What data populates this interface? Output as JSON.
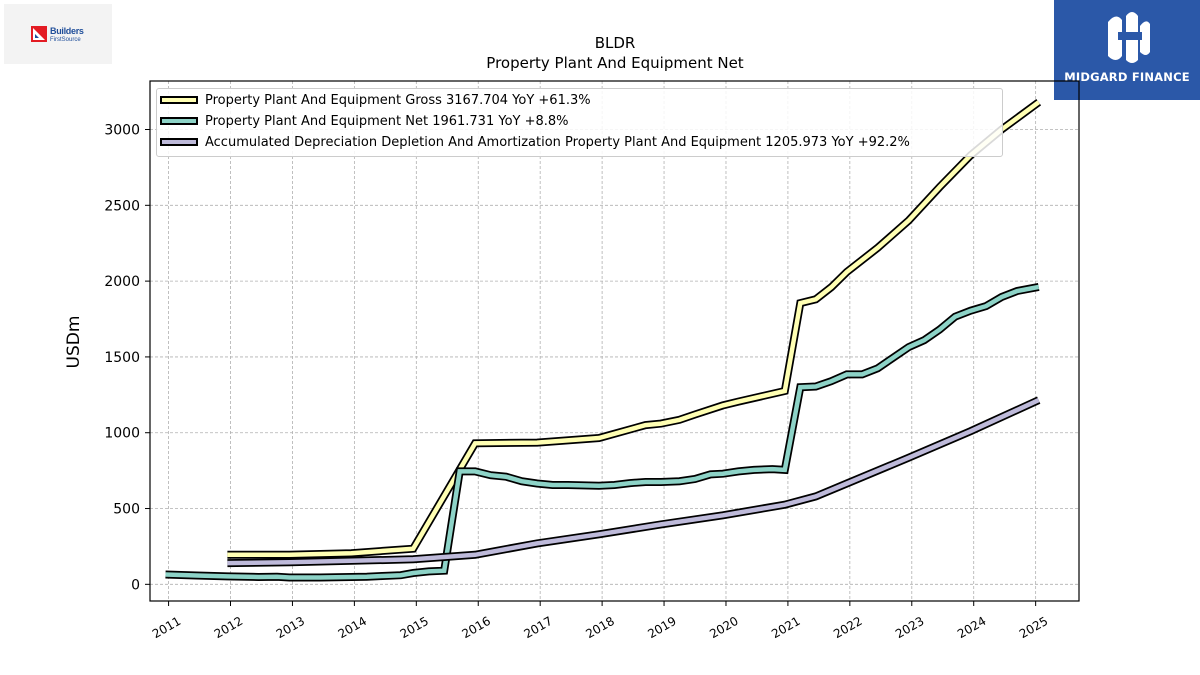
{
  "branding": {
    "left_logo_line1": "Builders",
    "left_logo_line2": "FirstSource",
    "right_logo_name": "MIDGARD FINANCE"
  },
  "chart_data": {
    "type": "line",
    "title": "BLDR",
    "subtitle": "Property Plant And Equipment Net",
    "ylabel": "USDm",
    "xlabel": "",
    "xlim": [
      2010.7,
      2025.7
    ],
    "ylim": [
      -110,
      3320
    ],
    "x_ticks": [
      "2011",
      "2012",
      "2013",
      "2014",
      "2015",
      "2016",
      "2017",
      "2018",
      "2019",
      "2020",
      "2021",
      "2022",
      "2023",
      "2024",
      "2025"
    ],
    "y_ticks": [
      0,
      500,
      1000,
      1500,
      2000,
      2500,
      3000
    ],
    "grid": true,
    "legend_position": "top-left",
    "series": [
      {
        "name": "Property Plant And Equipment Gross",
        "legend_label": "Property Plant And Equipment Gross  3167.704 YoY +61.3%",
        "color": "#ffffb3",
        "points": [
          [
            2011.95,
            195
          ],
          [
            2012.95,
            195
          ],
          [
            2013.95,
            205
          ],
          [
            2014.95,
            235
          ],
          [
            2015.95,
            930
          ],
          [
            2016.95,
            935
          ],
          [
            2017.95,
            965
          ],
          [
            2018.7,
            1050
          ],
          [
            2018.95,
            1060
          ],
          [
            2019.25,
            1085
          ],
          [
            2019.5,
            1120
          ],
          [
            2019.95,
            1180
          ],
          [
            2020.2,
            1205
          ],
          [
            2020.95,
            1275
          ],
          [
            2021.2,
            1855
          ],
          [
            2021.45,
            1880
          ],
          [
            2021.7,
            1960
          ],
          [
            2021.95,
            2060
          ],
          [
            2022.45,
            2220
          ],
          [
            2022.95,
            2400
          ],
          [
            2023.45,
            2620
          ],
          [
            2023.95,
            2830
          ],
          [
            2024.45,
            3000
          ],
          [
            2025.05,
            3180
          ]
        ]
      },
      {
        "name": "Property Plant And Equipment Net",
        "legend_label": "Property Plant And Equipment Net  1961.731 YoY +8.8%",
        "color": "#8dd3c7",
        "points": [
          [
            2010.95,
            65
          ],
          [
            2011.45,
            58
          ],
          [
            2011.95,
            52
          ],
          [
            2012.45,
            48
          ],
          [
            2012.75,
            50
          ],
          [
            2012.95,
            45
          ],
          [
            2013.45,
            45
          ],
          [
            2013.95,
            48
          ],
          [
            2014.2,
            50
          ],
          [
            2014.45,
            55
          ],
          [
            2014.75,
            60
          ],
          [
            2014.95,
            75
          ],
          [
            2015.2,
            85
          ],
          [
            2015.45,
            90
          ],
          [
            2015.7,
            745
          ],
          [
            2015.95,
            745
          ],
          [
            2016.2,
            720
          ],
          [
            2016.45,
            710
          ],
          [
            2016.7,
            680
          ],
          [
            2016.95,
            665
          ],
          [
            2017.2,
            655
          ],
          [
            2017.45,
            655
          ],
          [
            2017.95,
            650
          ],
          [
            2018.2,
            655
          ],
          [
            2018.45,
            668
          ],
          [
            2018.7,
            675
          ],
          [
            2018.95,
            675
          ],
          [
            2019.25,
            680
          ],
          [
            2019.5,
            695
          ],
          [
            2019.75,
            725
          ],
          [
            2019.95,
            730
          ],
          [
            2020.2,
            745
          ],
          [
            2020.45,
            755
          ],
          [
            2020.75,
            760
          ],
          [
            2020.95,
            755
          ],
          [
            2021.2,
            1300
          ],
          [
            2021.45,
            1305
          ],
          [
            2021.7,
            1340
          ],
          [
            2021.95,
            1385
          ],
          [
            2022.2,
            1385
          ],
          [
            2022.45,
            1425
          ],
          [
            2022.7,
            1495
          ],
          [
            2022.95,
            1565
          ],
          [
            2023.2,
            1610
          ],
          [
            2023.45,
            1680
          ],
          [
            2023.7,
            1765
          ],
          [
            2023.95,
            1805
          ],
          [
            2024.2,
            1835
          ],
          [
            2024.45,
            1895
          ],
          [
            2024.7,
            1935
          ],
          [
            2025.05,
            1962
          ]
        ]
      },
      {
        "name": "Accumulated Depreciation Depletion And Amortization Property Plant And Equipment",
        "legend_label": "Accumulated Depreciation Depletion And Amortization Property Plant And Equipment  1205.973 YoY +92.2%",
        "color": "#bebada",
        "points": [
          [
            2011.95,
            140
          ],
          [
            2012.95,
            145
          ],
          [
            2013.95,
            155
          ],
          [
            2014.95,
            165
          ],
          [
            2015.95,
            195
          ],
          [
            2016.95,
            270
          ],
          [
            2017.95,
            330
          ],
          [
            2018.95,
            395
          ],
          [
            2019.95,
            455
          ],
          [
            2020.95,
            525
          ],
          [
            2021.45,
            580
          ],
          [
            2021.95,
            665
          ],
          [
            2022.95,
            835
          ],
          [
            2023.95,
            1010
          ],
          [
            2025.05,
            1215
          ]
        ]
      }
    ]
  }
}
